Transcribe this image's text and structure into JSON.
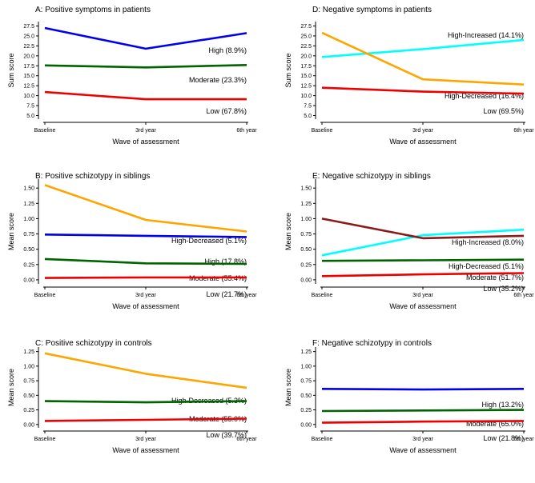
{
  "chart_data": [
    {
      "id": "A",
      "type": "line",
      "title": "A: Positive symptoms in patients",
      "xlabel": "Wave of assessment",
      "ylabel": "Sum score",
      "categories": [
        "Baseline",
        "3rd year",
        "6th year"
      ],
      "ylim": [
        4.5,
        28.2
      ],
      "yticks": [
        "5.0",
        "7.5",
        "10.0",
        "12.5",
        "15.0",
        "17.5",
        "20.0",
        "22.5",
        "25.0",
        "27.5"
      ],
      "series": [
        {
          "name": "High (8.9%)",
          "color": "#0000ee",
          "values": [
            27.0,
            21.8,
            25.7
          ]
        },
        {
          "name": "Moderate (23.3%)",
          "color": "#006400",
          "values": [
            17.6,
            17.1,
            17.7
          ]
        },
        {
          "name": "Low (67.8%)",
          "color": "#ee0000",
          "values": [
            10.9,
            9.1,
            9.1
          ]
        }
      ]
    },
    {
      "id": "D",
      "type": "line",
      "title": "D: Negative symptoms in patients",
      "xlabel": "Wave of assessment",
      "ylabel": "Sum score",
      "categories": [
        "Baseline",
        "3rd year",
        "6th year"
      ],
      "ylim": [
        4.5,
        28.2
      ],
      "yticks": [
        "5.0",
        "7.5",
        "10.0",
        "12.5",
        "15.0",
        "17.5",
        "20.0",
        "22.5",
        "25.0",
        "27.5"
      ],
      "series": [
        {
          "name": "High-Increased (14.1%)",
          "color": "#00ffff",
          "values": [
            19.7,
            21.7,
            24.0
          ]
        },
        {
          "name": "High-Decreased (16.4%)",
          "color": "#ffa500",
          "values": [
            25.8,
            14.1,
            12.8
          ]
        },
        {
          "name": "Low (69.5%)",
          "color": "#ee0000",
          "values": [
            12.0,
            11.0,
            10.5
          ]
        }
      ]
    },
    {
      "id": "B",
      "type": "line",
      "title": "B: Positive schizotypy in siblings",
      "xlabel": "Wave of assessment",
      "ylabel": "Mean score",
      "categories": [
        "Baseline",
        "3rd year",
        "6th year"
      ],
      "ylim": [
        -0.04,
        1.62
      ],
      "yticks": [
        "0.00",
        "0.25",
        "0.50",
        "0.75",
        "1.00",
        "1.25",
        "1.50"
      ],
      "series": [
        {
          "name": "High-Decreased (5.1%)",
          "color": "#ffa500",
          "values": [
            1.55,
            0.98,
            0.79
          ]
        },
        {
          "name": "High (17.8%)",
          "color": "#0000ee",
          "values": [
            0.74,
            0.72,
            0.7
          ]
        },
        {
          "name": "Moderate (55.4%)",
          "color": "#006400",
          "values": [
            0.34,
            0.27,
            0.26
          ]
        },
        {
          "name": "Low (21.7%)",
          "color": "#ee0000",
          "values": [
            0.03,
            0.04,
            0.04
          ]
        }
      ]
    },
    {
      "id": "E",
      "type": "line",
      "title": "E: Negative schizotypy in siblings",
      "xlabel": "Wave of assessment",
      "ylabel": "Mean score",
      "categories": [
        "Baseline",
        "3rd year",
        "6th year"
      ],
      "ylim": [
        -0.04,
        1.62
      ],
      "yticks": [
        "0.00",
        "0.25",
        "0.50",
        "0.75",
        "1.00",
        "1.25",
        "1.50"
      ],
      "series": [
        {
          "name": "High-Increased (8.0%)",
          "color": "#00ffff",
          "values": [
            0.4,
            0.73,
            0.82
          ]
        },
        {
          "name": "High-Decreased (5.1%)",
          "color": "#8b1a1a",
          "values": [
            1.0,
            0.68,
            0.72
          ]
        },
        {
          "name": "Moderate (51.7%)",
          "color": "#006400",
          "values": [
            0.31,
            0.32,
            0.33
          ]
        },
        {
          "name": "Low (35.2%)",
          "color": "#ee0000",
          "values": [
            0.06,
            0.09,
            0.11
          ]
        }
      ]
    },
    {
      "id": "C",
      "type": "line",
      "title": "C: Positive schizotypy in controls",
      "xlabel": "Wave of assessment",
      "ylabel": "Mean score",
      "categories": [
        "Baseline",
        "3rd year",
        "6th year"
      ],
      "ylim": [
        -0.03,
        1.3
      ],
      "yticks": [
        "0.00",
        "0.25",
        "0.50",
        "0.75",
        "1.00",
        "1.25"
      ],
      "series": [
        {
          "name": "High-Decreased (5.3%)",
          "color": "#ffa500",
          "values": [
            1.22,
            0.87,
            0.63
          ]
        },
        {
          "name": "Moderate (55.0%)",
          "color": "#006400",
          "values": [
            0.4,
            0.38,
            0.4
          ]
        },
        {
          "name": "Low (39.7%)",
          "color": "#ee0000",
          "values": [
            0.06,
            0.08,
            0.1
          ]
        }
      ]
    },
    {
      "id": "F",
      "type": "line",
      "title": "F: Negative schizotypy in controls",
      "xlabel": "Wave of assessment",
      "ylabel": "Mean score",
      "categories": [
        "Baseline",
        "3rd year",
        "6th year"
      ],
      "ylim": [
        -0.03,
        1.3
      ],
      "yticks": [
        "0.00",
        "0.25",
        "0.50",
        "0.75",
        "1.00",
        "1.25"
      ],
      "series": [
        {
          "name": "High (13.2%)",
          "color": "#0000ee",
          "values": [
            0.61,
            0.6,
            0.61
          ]
        },
        {
          "name": "Moderate (65.0%)",
          "color": "#006400",
          "values": [
            0.23,
            0.24,
            0.25
          ]
        },
        {
          "name": "Low (21.8%)",
          "color": "#ee0000",
          "values": [
            0.03,
            0.05,
            0.06
          ]
        }
      ]
    }
  ]
}
